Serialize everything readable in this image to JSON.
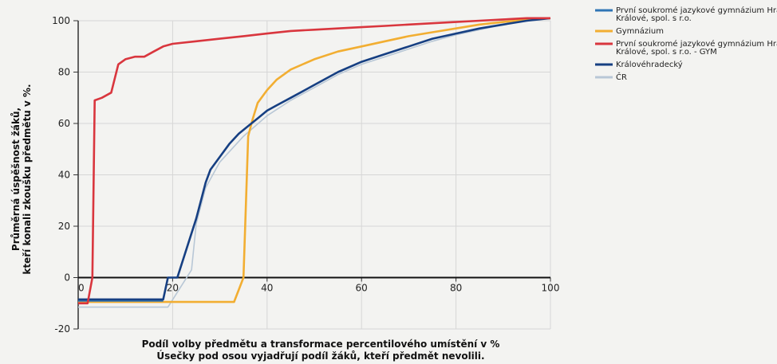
{
  "chart_data": {
    "type": "line",
    "xlabel": [
      "Podíl volby předmětu a transformace percentilového umístění v %",
      "Úsečky pod osou vyjadřují podíl žáků, kteří předmět nevolili."
    ],
    "ylabel": [
      "Průměrná úspěšnost žáků,",
      "kteří konali zkoušku předmětu v %."
    ],
    "xlim": [
      0,
      100
    ],
    "ylim": [
      -20,
      100
    ],
    "x_ticks": [
      "0",
      "20",
      "40",
      "60",
      "80",
      "100"
    ],
    "y_ticks": [
      "100",
      "80",
      "60",
      "40",
      "20",
      "0",
      "-20"
    ],
    "grid": true,
    "legend_position": "right",
    "series": [
      {
        "name": "První soukromé jazykové gymnázium Hradec Králové, spol. s r.o.",
        "color": "#2f75b5",
        "points": [
          [
            0,
            -9
          ],
          [
            18,
            -9
          ]
        ]
      },
      {
        "name": "Gymnázium",
        "color": "#f2ae32",
        "points": [
          [
            0,
            -9.5
          ],
          [
            33,
            -9.5
          ],
          [
            35,
            0
          ],
          [
            36,
            55
          ],
          [
            37,
            62
          ],
          [
            38,
            68
          ],
          [
            40,
            73
          ],
          [
            42,
            77
          ],
          [
            45,
            81
          ],
          [
            50,
            85
          ],
          [
            55,
            88
          ],
          [
            60,
            90
          ],
          [
            65,
            92
          ],
          [
            70,
            94
          ],
          [
            75,
            95.5
          ],
          [
            80,
            97
          ],
          [
            85,
            98.5
          ],
          [
            90,
            99.5
          ],
          [
            95,
            100.5
          ],
          [
            100,
            101
          ]
        ]
      },
      {
        "name": "První soukromé jazykové gymnázium Hradec Králové, spol. s r.o. - GYM",
        "color": "#d9363e",
        "points": [
          [
            0,
            -10
          ],
          [
            2,
            -10
          ],
          [
            3,
            0
          ],
          [
            3.5,
            69
          ],
          [
            5,
            70
          ],
          [
            7,
            72
          ],
          [
            8.5,
            83
          ],
          [
            10,
            85
          ],
          [
            12,
            86
          ],
          [
            14,
            86
          ],
          [
            16,
            88
          ],
          [
            18,
            90
          ],
          [
            20,
            91
          ],
          [
            25,
            92
          ],
          [
            30,
            93
          ],
          [
            35,
            94
          ],
          [
            40,
            95
          ],
          [
            45,
            96
          ],
          [
            50,
            96.5
          ],
          [
            55,
            97
          ],
          [
            60,
            97.5
          ],
          [
            65,
            98
          ],
          [
            70,
            98.5
          ],
          [
            75,
            99
          ],
          [
            80,
            99.5
          ],
          [
            85,
            100
          ],
          [
            90,
            100.5
          ],
          [
            95,
            101
          ],
          [
            100,
            101
          ]
        ]
      },
      {
        "name": "Královéhradecký",
        "color": "#163f82",
        "points": [
          [
            0,
            -8.5
          ],
          [
            18,
            -8.5
          ],
          [
            19,
            0
          ],
          [
            21,
            0
          ],
          [
            25,
            23
          ],
          [
            26,
            30
          ],
          [
            27,
            37
          ],
          [
            28,
            42
          ],
          [
            30,
            47
          ],
          [
            32,
            52
          ],
          [
            34,
            56
          ],
          [
            36,
            59
          ],
          [
            38,
            62
          ],
          [
            40,
            65
          ],
          [
            42,
            67
          ],
          [
            45,
            70
          ],
          [
            48,
            73
          ],
          [
            50,
            75
          ],
          [
            55,
            80
          ],
          [
            60,
            84
          ],
          [
            65,
            87
          ],
          [
            70,
            90
          ],
          [
            75,
            93
          ],
          [
            80,
            95
          ],
          [
            85,
            97
          ],
          [
            90,
            98.5
          ],
          [
            95,
            100
          ],
          [
            100,
            101
          ]
        ]
      },
      {
        "name": "ČR",
        "color": "#b8c7d6",
        "points": [
          [
            0,
            -11.5
          ],
          [
            19,
            -11.5
          ],
          [
            24,
            3
          ],
          [
            25,
            21
          ],
          [
            27,
            35
          ],
          [
            30,
            45
          ],
          [
            35,
            55
          ],
          [
            40,
            63
          ],
          [
            45,
            69
          ],
          [
            50,
            74
          ],
          [
            55,
            79
          ],
          [
            60,
            83
          ],
          [
            65,
            86
          ],
          [
            70,
            89
          ],
          [
            75,
            92
          ],
          [
            80,
            94.5
          ],
          [
            85,
            96.5
          ],
          [
            90,
            98.5
          ],
          [
            95,
            100
          ],
          [
            100,
            101
          ]
        ]
      }
    ]
  }
}
